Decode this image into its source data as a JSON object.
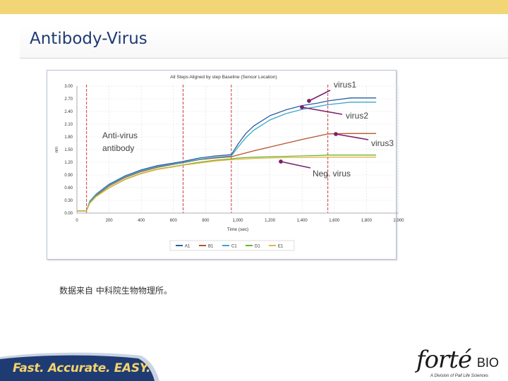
{
  "slide": {
    "title": "Antibody-Virus",
    "note": "数据来自 中科院生物物理所。",
    "tagline": "Fast. Accurate. EASY.",
    "logo": {
      "main": "forté",
      "suffix": "BIO",
      "sub": "A Division of Pall Life Sciences"
    },
    "colors": {
      "top_bar": "#f2d675",
      "title": "#1f3b73",
      "footer_band": "#1f3b73",
      "tagline": "#f4d36b",
      "arrow": "#7a1f6e"
    }
  },
  "annotations": {
    "virus1": "virus1",
    "virus2": "virus2",
    "virus3": "virus3",
    "neg": "Neg. virus",
    "antibody_line1": "Anti-virus",
    "antibody_line2": "antibody"
  },
  "chart_data": {
    "type": "line",
    "title": "All Steps Aligned by step Baseline (Sensor Location)",
    "xlabel": "Time (sec)",
    "ylabel": "nm",
    "xlim": [
      0,
      2000
    ],
    "ylim": [
      0,
      3.0
    ],
    "xticks": [
      0,
      200,
      400,
      600,
      800,
      1000,
      1200,
      1400,
      1600,
      1800,
      2000
    ],
    "xtick_labels": [
      "0",
      "200",
      "400",
      "600",
      "800",
      "1,000",
      "1,200",
      "1,400",
      "1,600",
      "1,800",
      "2,000"
    ],
    "yticks": [
      0,
      0.3,
      0.6,
      0.9,
      1.2,
      1.5,
      1.8,
      2.1,
      2.4,
      2.7,
      3.0
    ],
    "ytick_labels": [
      "0.00",
      "0.30",
      "0.60",
      "0.90",
      "1.20",
      "1.50",
      "1.80",
      "2.10",
      "2.40",
      "2.70",
      "3.00"
    ],
    "step_lines": [
      60,
      660,
      960,
      1560
    ],
    "grid": true,
    "legend_position": "bottom",
    "x": [
      0,
      60,
      80,
      120,
      200,
      300,
      400,
      500,
      600,
      660,
      760,
      860,
      960,
      1000,
      1050,
      1100,
      1200,
      1300,
      1400,
      1500,
      1560,
      1700,
      1860
    ],
    "series": [
      {
        "name": "A1",
        "color": "#2e5fa3",
        "values": [
          0.05,
          0.05,
          0.28,
          0.45,
          0.68,
          0.88,
          1.02,
          1.12,
          1.18,
          1.22,
          1.3,
          1.35,
          1.38,
          1.62,
          1.88,
          2.06,
          2.3,
          2.44,
          2.54,
          2.6,
          2.65,
          2.72,
          2.72
        ]
      },
      {
        "name": "B1",
        "color": "#b5532b",
        "values": [
          0.05,
          0.05,
          0.26,
          0.42,
          0.64,
          0.84,
          0.98,
          1.08,
          1.15,
          1.19,
          1.26,
          1.3,
          1.33,
          1.37,
          1.42,
          1.47,
          1.56,
          1.65,
          1.74,
          1.82,
          1.87,
          1.88,
          1.88
        ]
      },
      {
        "name": "C1",
        "color": "#3aa8c9",
        "values": [
          0.05,
          0.05,
          0.27,
          0.44,
          0.66,
          0.86,
          1.0,
          1.1,
          1.16,
          1.2,
          1.27,
          1.32,
          1.35,
          1.55,
          1.78,
          1.96,
          2.2,
          2.35,
          2.45,
          2.52,
          2.56,
          2.62,
          2.62
        ]
      },
      {
        "name": "D1",
        "color": "#6fb22b",
        "values": [
          0.05,
          0.05,
          0.24,
          0.4,
          0.6,
          0.8,
          0.94,
          1.04,
          1.1,
          1.14,
          1.2,
          1.25,
          1.28,
          1.3,
          1.31,
          1.32,
          1.33,
          1.34,
          1.35,
          1.36,
          1.37,
          1.37,
          1.37
        ]
      },
      {
        "name": "E1",
        "color": "#e3b848",
        "values": [
          0.05,
          0.05,
          0.23,
          0.39,
          0.59,
          0.79,
          0.93,
          1.03,
          1.09,
          1.13,
          1.18,
          1.23,
          1.26,
          1.27,
          1.28,
          1.29,
          1.3,
          1.31,
          1.31,
          1.32,
          1.32,
          1.32,
          1.32
        ]
      }
    ]
  }
}
